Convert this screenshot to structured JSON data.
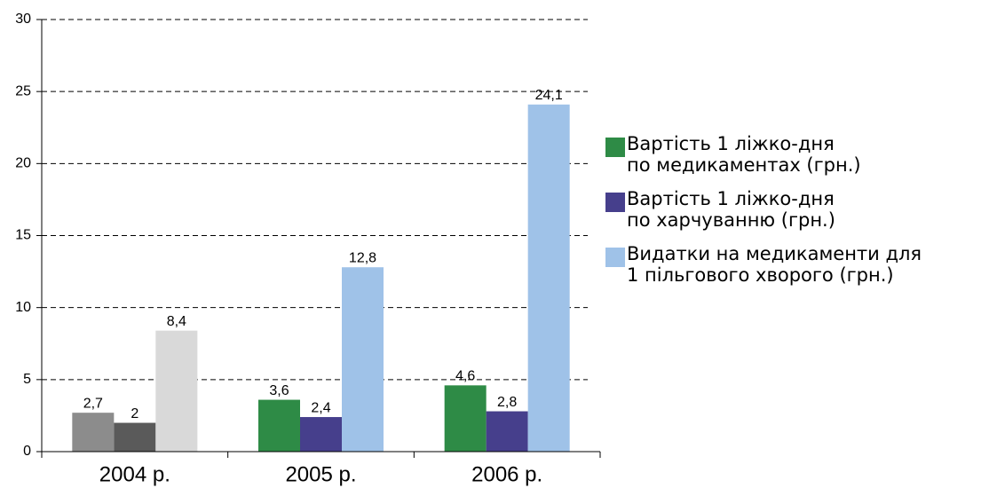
{
  "chart_data": {
    "type": "bar",
    "categories": [
      "2004 р.",
      "2005 р.",
      "2006 р."
    ],
    "series": [
      {
        "name": "Вартість 1 ліжко-дня\nпо медикаментах (грн.)",
        "color": "#2e8b46",
        "colors": [
          "#8c8c8c",
          "#2e8b46",
          "#2e8b46"
        ],
        "values": [
          2.7,
          3.6,
          4.6
        ],
        "value_labels": [
          "2,7",
          "3,6",
          "4,6"
        ]
      },
      {
        "name": "Вартість 1 ліжко-дня\nпо харчуванню (грн.)",
        "color": "#463f8c",
        "colors": [
          "#5a5a5a",
          "#463f8c",
          "#463f8c"
        ],
        "values": [
          2,
          2.4,
          2.8
        ],
        "value_labels": [
          "2",
          "2,4",
          "2,8"
        ]
      },
      {
        "name": "Видатки на медикаменти для\n1 пільгового хворого (грн.)",
        "color": "#9fc2e8",
        "colors": [
          "#d9d9d9",
          "#9fc2e8",
          "#9fc2e8"
        ],
        "values": [
          8.4,
          12.8,
          24.1
        ],
        "value_labels": [
          "8,4",
          "12,8",
          "24,1"
        ]
      }
    ],
    "ylim": [
      0,
      30
    ],
    "yticks": [
      0,
      5,
      10,
      15,
      20,
      25,
      30
    ],
    "grid": true,
    "legend": "right"
  }
}
